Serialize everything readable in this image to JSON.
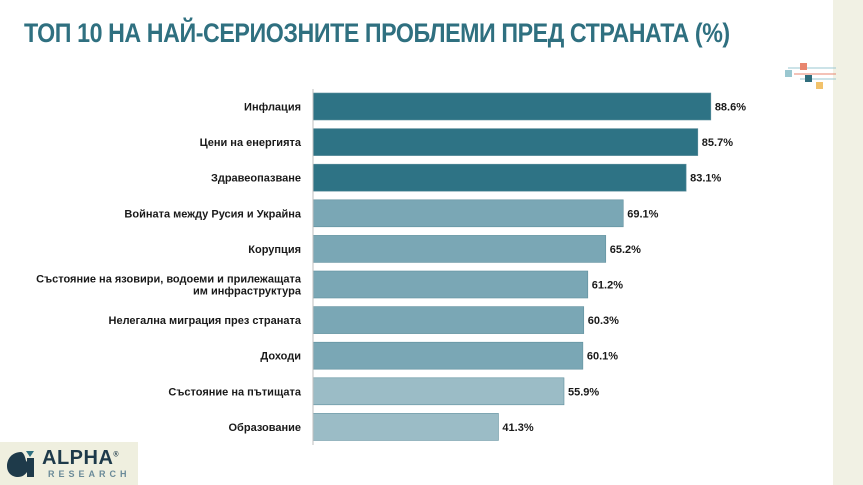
{
  "title": "ТОП 10 НА НАЙ-СЕРИОЗНИТЕ ПРОБЛЕМИ ПРЕД СТРАНАТА (%)",
  "logo": {
    "name": "ALPHA",
    "registered": "®",
    "sub": "RESEARCH"
  },
  "colors": {
    "title": "#2f7080",
    "bar_dark": "#2e7385",
    "bar_mid": "#7aa7b5",
    "bar_light": "#9bbcc6",
    "bar_outline": "#5f8f9d"
  },
  "chart_data": {
    "type": "bar",
    "orientation": "horizontal",
    "categories": [
      [
        "Инфлация"
      ],
      [
        "Цени на енергията"
      ],
      [
        "Здравеопазване"
      ],
      [
        "Войната между Русия и Украйна"
      ],
      [
        "Корупция"
      ],
      [
        "Състояние на язовири, водоеми и прилежащата",
        "им инфраструктура"
      ],
      [
        "Нелегална миграция през страната"
      ],
      [
        "Доходи"
      ],
      [
        "Състояние на пътищата"
      ],
      [
        "Образование"
      ]
    ],
    "values": [
      88.6,
      85.7,
      83.1,
      69.1,
      65.2,
      61.2,
      60.3,
      60.1,
      55.9,
      41.3
    ],
    "value_labels": [
      "88.6%",
      "85.7%",
      "83.1%",
      "69.1%",
      "65.2%",
      "61.2%",
      "60.3%",
      "60.1%",
      "55.9%",
      "41.3%"
    ],
    "bar_color_groups": [
      "dark",
      "dark",
      "dark",
      "mid",
      "mid",
      "mid",
      "mid",
      "mid",
      "light",
      "light"
    ],
    "xlim": [
      0,
      100
    ],
    "grid": false,
    "legend": "none"
  }
}
